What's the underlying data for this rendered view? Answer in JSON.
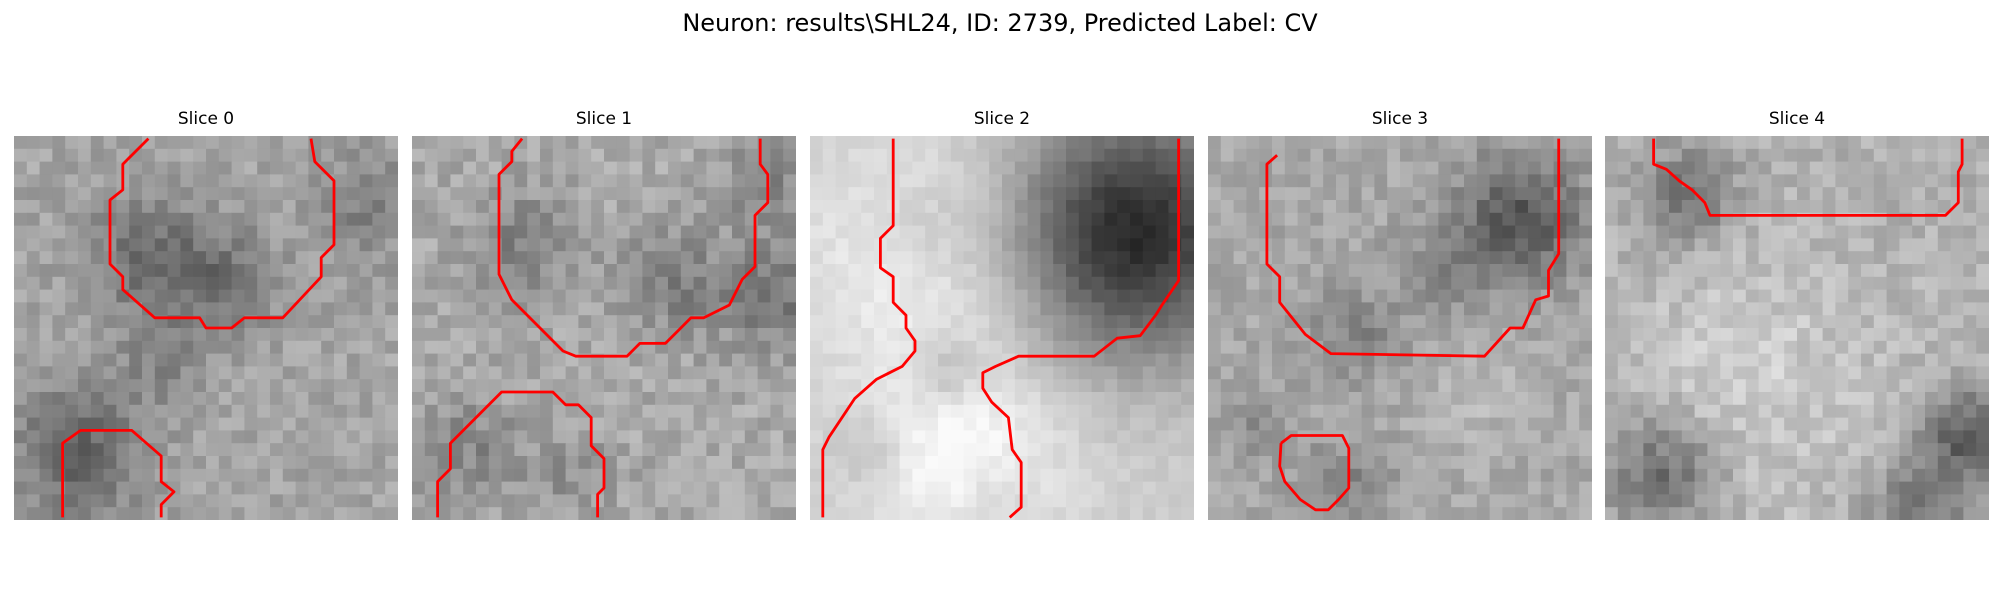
{
  "figure": {
    "title": "Neuron: results\\SHL24, ID: 2739, Predicted Label: CV",
    "contour_color": "#ff0000"
  },
  "slices": [
    {
      "label": "Slice 0"
    },
    {
      "label": "Slice 1"
    },
    {
      "label": "Slice 2"
    },
    {
      "label": "Slice 3"
    },
    {
      "label": "Slice 4"
    }
  ]
}
